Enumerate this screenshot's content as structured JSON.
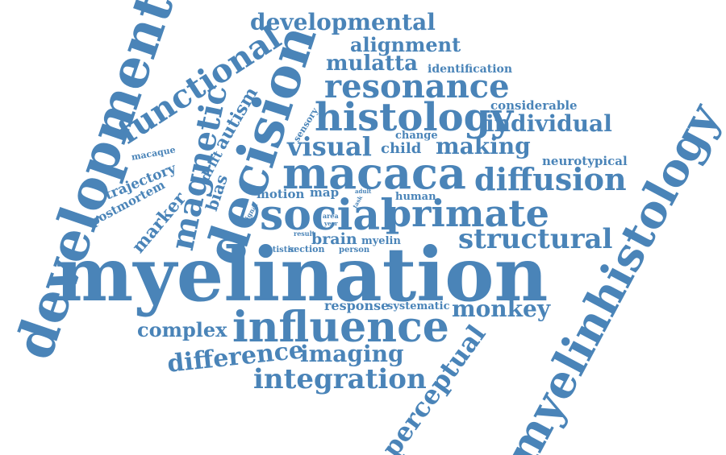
{
  "colors": {
    "word": "#4a84b8",
    "background": "#ffffff"
  },
  "words": [
    "myelination",
    "development",
    "myelinhistology",
    "decision",
    "macaca",
    "social",
    "primate",
    "influence",
    "histology",
    "resonance",
    "functional",
    "magnetic",
    "developmental",
    "alignment",
    "mulatta",
    "identification",
    "individual",
    "considerable",
    "visual",
    "child",
    "making",
    "diffusion",
    "neurotypical",
    "structural",
    "monkey",
    "perceptual",
    "integration",
    "imaging",
    "difference",
    "complex",
    "response",
    "systematic",
    "brain",
    "myelin",
    "motion",
    "map",
    "human",
    "autism",
    "drift",
    "bias",
    "marker",
    "trajectory",
    "macaque",
    "postmortem",
    "sensory",
    "change",
    "autistic",
    "section",
    "person",
    "signal",
    "result",
    "area",
    "year",
    "task",
    "adult"
  ]
}
